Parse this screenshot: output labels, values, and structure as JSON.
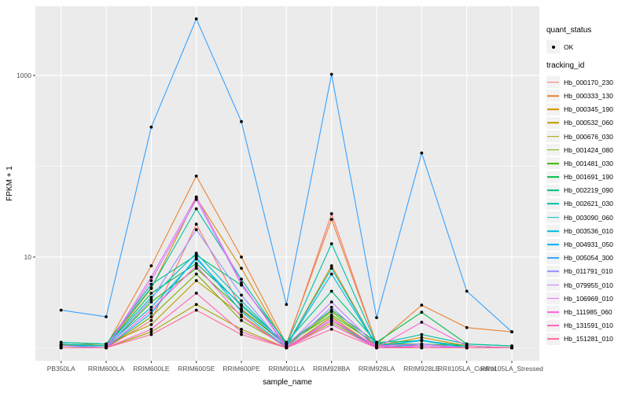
{
  "figure": {
    "background": "#FFFFFF",
    "panel_background": "#EBEBEB",
    "grid_color": "#FFFFFF",
    "tick_color": "#333333",
    "axis_text_color": "#4D4D4D",
    "title_text_color": "#000000",
    "point_color": "#000000",
    "legend_key_background": "#F2F2F2"
  },
  "axes": {
    "x_title": "sample_name",
    "y_title": "FPKM + 1",
    "y_major_ticks": [
      {
        "label": "10",
        "value": 10
      },
      {
        "label": "1000",
        "value": 1000
      }
    ],
    "y_minor_gridlines": [
      1,
      100
    ]
  },
  "legend": {
    "quant_status": {
      "title": "quant_status",
      "items": [
        {
          "label": "OK",
          "symbol": "point",
          "color": "#000000"
        }
      ]
    },
    "tracking_id_title": "tracking_id"
  },
  "chart_data": {
    "type": "line",
    "title": "",
    "xlabel": "sample_name",
    "ylabel": "FPKM + 1",
    "y_scale": "log10",
    "ylim": [
      0.9,
      5000
    ],
    "grid": true,
    "legend_position": "right",
    "point_marker": "filled-circle",
    "categories": [
      "PB350LA",
      "RRIM600LA",
      "RRIM600LE",
      "RRIM600SE",
      "RRIM600PE",
      "RRIM901LA",
      "RRIM928BA",
      "RRIM928LA",
      "RRIM928LE",
      "RRII105LA_Control",
      "RRII105LA_Stressed"
    ],
    "series": [
      {
        "name": "Hb_000170_230",
        "color": "#F8766D",
        "values": [
          1.0,
          1.0,
          2.0,
          23,
          2.7,
          1.05,
          30,
          1.1,
          1.05,
          1.0,
          1.0
        ]
      },
      {
        "name": "Hb_000333_130",
        "color": "#EA8331",
        "values": [
          1.05,
          1.05,
          8.0,
          78,
          10.0,
          1.1,
          26,
          1.1,
          2.95,
          1.67,
          1.5
        ]
      },
      {
        "name": "Hb_000345_190",
        "color": "#D89000",
        "values": [
          1.08,
          1.05,
          4.5,
          45,
          7.5,
          1.05,
          8.0,
          1.05,
          1.3,
          1.05,
          1.0
        ]
      },
      {
        "name": "Hb_000532_060",
        "color": "#C09B00",
        "values": [
          1.08,
          1.1,
          1.8,
          5.5,
          2.3,
          1.0,
          2.2,
          1.0,
          1.05,
          1.0,
          1.0
        ]
      },
      {
        "name": "Hb_000676_030",
        "color": "#A3A500",
        "values": [
          1.0,
          1.0,
          1.5,
          3.0,
          1.6,
          1.0,
          1.9,
          1.0,
          1.0,
          1.0,
          1.0
        ]
      },
      {
        "name": "Hb_001424_080",
        "color": "#7CAE00",
        "values": [
          1.0,
          1.0,
          2.2,
          6.5,
          2.0,
          1.05,
          2.5,
          1.05,
          1.0,
          1.0,
          1.0
        ]
      },
      {
        "name": "Hb_001481_030",
        "color": "#39B600",
        "values": [
          1.05,
          1.0,
          3.2,
          7.5,
          2.6,
          1.1,
          2.3,
          1.1,
          1.1,
          1.05,
          1.0
        ]
      },
      {
        "name": "Hb_001691_190",
        "color": "#00BB4E",
        "values": [
          1.1,
          1.05,
          4.0,
          8.5,
          3.0,
          1.1,
          2.6,
          1.15,
          2.46,
          1.1,
          1.05
        ]
      },
      {
        "name": "Hb_002219_090",
        "color": "#00BF7D",
        "values": [
          1.15,
          1.1,
          5.0,
          10.5,
          4.9,
          1.15,
          4.2,
          1.15,
          1.2,
          1.05,
          1.0
        ]
      },
      {
        "name": "Hb_002621_030",
        "color": "#00C1A3",
        "values": [
          1.15,
          1.1,
          4.6,
          34,
          5.7,
          1.1,
          14,
          1.1,
          1.4,
          1.1,
          1.05
        ]
      },
      {
        "name": "Hb_003090_060",
        "color": "#00BFC4",
        "values": [
          1.1,
          1.05,
          3.6,
          11,
          3.3,
          1.05,
          7.5,
          1.05,
          1.22,
          1.0,
          1.0
        ]
      },
      {
        "name": "Hb_003536_010",
        "color": "#00BAE0",
        "values": [
          1.05,
          1.05,
          2.8,
          9.5,
          2.9,
          1.05,
          6.5,
          1.05,
          1.2,
          1.0,
          1.0
        ]
      },
      {
        "name": "Hb_004931_050",
        "color": "#00B0F6",
        "values": [
          1.0,
          1.0,
          2.4,
          10.0,
          2.5,
          1.0,
          2.0,
          1.0,
          1.1,
          1.0,
          1.0
        ]
      },
      {
        "name": "Hb_005054_300",
        "color": "#35A2FF",
        "values": [
          2.6,
          2.2,
          270,
          4200,
          310,
          3.0,
          1030,
          2.15,
          140,
          4.2,
          1.5
        ]
      },
      {
        "name": "Hb_011791_010",
        "color": "#9590FF",
        "values": [
          1.0,
          1.0,
          3.4,
          20,
          3.8,
          1.0,
          2.8,
          1.0,
          1.05,
          1.0,
          1.0
        ]
      },
      {
        "name": "Hb_079955_010",
        "color": "#C77CFF",
        "values": [
          1.05,
          1.0,
          5.5,
          43,
          5.0,
          1.05,
          3.2,
          1.05,
          1.1,
          1.0,
          1.0
        ]
      },
      {
        "name": "Hb_106969_010",
        "color": "#E76BF3",
        "values": [
          1.0,
          1.0,
          6.0,
          46,
          5.2,
          1.0,
          2.1,
          1.0,
          1.05,
          1.0,
          1.0
        ]
      },
      {
        "name": "Hb_111985_060",
        "color": "#FA62DB",
        "values": [
          1.0,
          1.0,
          2.6,
          8.0,
          2.2,
          1.0,
          1.8,
          1.0,
          1.91,
          1.05,
          1.0
        ]
      },
      {
        "name": "Hb_131591_010",
        "color": "#FF62BC",
        "values": [
          1.0,
          1.0,
          1.6,
          4.0,
          1.5,
          1.0,
          2.0,
          1.05,
          1.0,
          1.0,
          1.0
        ]
      },
      {
        "name": "Hb_151281_010",
        "color": "#FF6A98",
        "values": [
          1.0,
          1.0,
          1.4,
          2.6,
          1.4,
          1.0,
          1.6,
          1.0,
          1.0,
          1.0,
          1.0
        ]
      }
    ]
  }
}
